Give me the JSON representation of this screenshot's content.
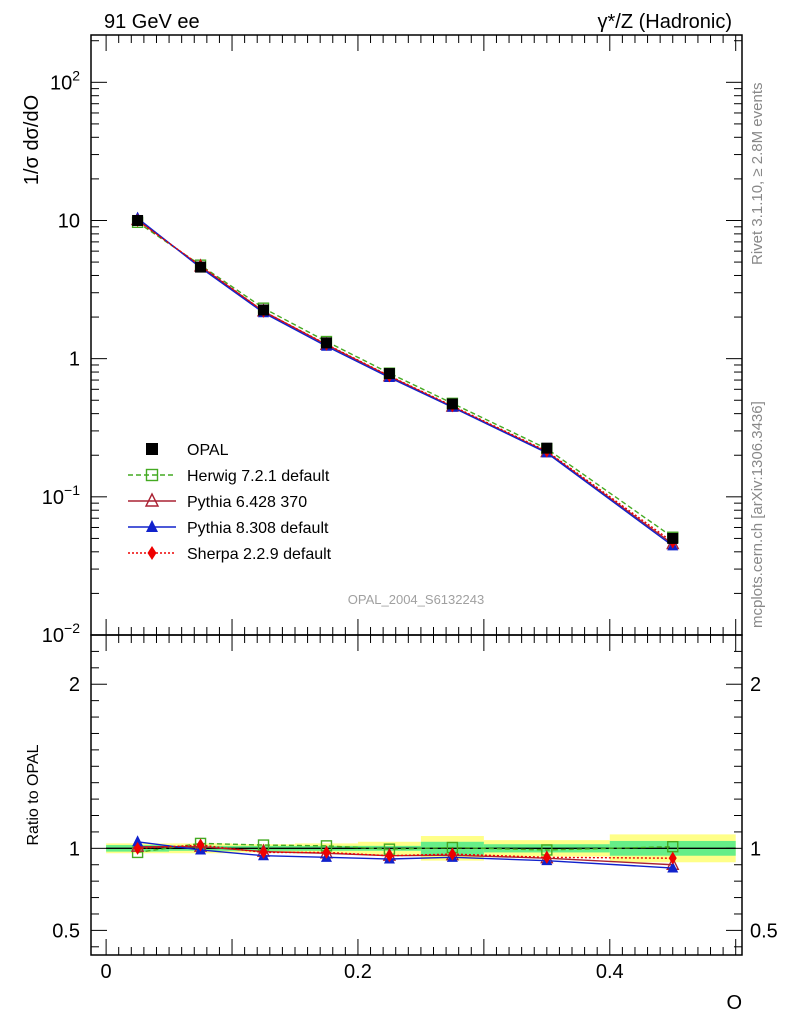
{
  "header": {
    "left": "91 GeV ee",
    "right": "γ*/Z (Hadronic)"
  },
  "side_labels": {
    "rivet": "Rivet 3.1.10, ≥ 2.8M events",
    "source": "mcplots.cern.ch [arXiv:1306.3436]"
  },
  "watermark": "OPAL_2004_S6132243",
  "colors": {
    "data": "#000000",
    "herwig": "#44aa22",
    "pythia6": "#aa2233",
    "pythia8": "#1122cc",
    "sherpa": "#ee0000",
    "band_inner": "#66ee88",
    "band_outer": "#ffff88"
  },
  "chart_data": [
    {
      "type": "line",
      "panel": "main",
      "ylabel": "1/σ dσ/dO",
      "yscale": "log",
      "ylim": [
        0.01,
        220
      ],
      "xlim": [
        -0.012,
        0.505
      ],
      "y_ticks": [
        {
          "value": 0.01,
          "label_base": "10",
          "label_exp": "−2"
        },
        {
          "value": 0.1,
          "label_base": "10",
          "label_exp": "−1"
        },
        {
          "value": 1,
          "label_base": "1",
          "label_exp": ""
        },
        {
          "value": 10,
          "label_base": "10",
          "label_exp": ""
        },
        {
          "value": 100,
          "label_base": "10",
          "label_exp": "2"
        }
      ],
      "legend_position": "lower-left",
      "x": [
        0.025,
        0.075,
        0.125,
        0.175,
        0.225,
        0.275,
        0.35,
        0.45
      ],
      "bin_edges": [
        0.0,
        0.05,
        0.1,
        0.15,
        0.2,
        0.25,
        0.3,
        0.4,
        0.5
      ],
      "series": [
        {
          "name": "OPAL",
          "key": "data",
          "marker": "square-filled",
          "line": "none",
          "values": [
            10.0,
            4.6,
            2.25,
            1.3,
            0.78,
            0.47,
            0.225,
            0.05
          ]
        },
        {
          "name": "Herwig 7.2.1 default",
          "key": "herwig",
          "marker": "square-open",
          "line": "dashed",
          "values": [
            9.7,
            4.75,
            2.32,
            1.33,
            0.785,
            0.475,
            0.223,
            0.051
          ]
        },
        {
          "name": "Pythia 6.428 370",
          "key": "pythia6",
          "marker": "triangle-open",
          "line": "solid",
          "values": [
            10.1,
            4.65,
            2.2,
            1.26,
            0.745,
            0.45,
            0.211,
            0.0455
          ]
        },
        {
          "name": "Pythia 8.308 default",
          "key": "pythia8",
          "marker": "triangle-filled",
          "line": "solid",
          "values": [
            10.4,
            4.55,
            2.15,
            1.23,
            0.73,
            0.445,
            0.208,
            0.0442
          ]
        },
        {
          "name": "Sherpa 2.2.9 default",
          "key": "sherpa",
          "marker": "diamond-filled",
          "line": "dotted",
          "values": [
            10.0,
            4.7,
            2.2,
            1.27,
            0.75,
            0.455,
            0.214,
            0.047
          ]
        }
      ]
    },
    {
      "type": "line",
      "panel": "ratio",
      "xlabel": "O",
      "ylabel": "Ratio to OPAL",
      "ylim": [
        0.35,
        2.3
      ],
      "xlim": [
        -0.012,
        0.505
      ],
      "y_ticks": [
        0.5,
        1,
        2
      ],
      "y_tick_labels": [
        "0.5",
        "1",
        "2"
      ],
      "x_ticks": [
        0,
        0.2,
        0.4
      ],
      "x_tick_labels": [
        "0",
        "0.2",
        "0.4"
      ],
      "reference_line": 1,
      "bin_edges": [
        0.0,
        0.05,
        0.1,
        0.15,
        0.2,
        0.25,
        0.3,
        0.4,
        0.5
      ],
      "band_inner": [
        [
          0.98,
          1.02
        ],
        [
          0.985,
          1.015
        ],
        [
          0.985,
          1.015
        ],
        [
          0.985,
          1.015
        ],
        [
          0.985,
          1.015
        ],
        [
          0.96,
          1.04
        ],
        [
          0.975,
          1.025
        ],
        [
          0.955,
          1.045
        ]
      ],
      "band_outer": [
        [
          0.97,
          1.03
        ],
        [
          0.97,
          1.03
        ],
        [
          0.975,
          1.025
        ],
        [
          0.97,
          1.03
        ],
        [
          0.96,
          1.04
        ],
        [
          0.925,
          1.075
        ],
        [
          0.95,
          1.05
        ],
        [
          0.915,
          1.085
        ]
      ],
      "x": [
        0.025,
        0.075,
        0.125,
        0.175,
        0.225,
        0.275,
        0.35,
        0.45
      ],
      "series": [
        {
          "name": "Herwig 7.2.1 default",
          "key": "herwig",
          "marker": "square-open",
          "line": "dashed",
          "values": [
            0.975,
            1.03,
            1.02,
            1.015,
            0.995,
            1.005,
            0.99,
            1.01
          ]
        },
        {
          "name": "Pythia 6.428 370",
          "key": "pythia6",
          "marker": "triangle-open",
          "line": "solid",
          "values": [
            1.01,
            1.01,
            0.98,
            0.97,
            0.955,
            0.958,
            0.94,
            0.9
          ]
        },
        {
          "name": "Pythia 8.308 default",
          "key": "pythia8",
          "marker": "triangle-filled",
          "line": "solid",
          "values": [
            1.04,
            0.99,
            0.955,
            0.945,
            0.935,
            0.945,
            0.925,
            0.88
          ]
        },
        {
          "name": "Sherpa 2.2.9 default",
          "key": "sherpa",
          "marker": "diamond-filled",
          "line": "dotted",
          "values": [
            1.0,
            1.02,
            0.975,
            0.975,
            0.955,
            0.965,
            0.945,
            0.94
          ]
        }
      ]
    }
  ]
}
